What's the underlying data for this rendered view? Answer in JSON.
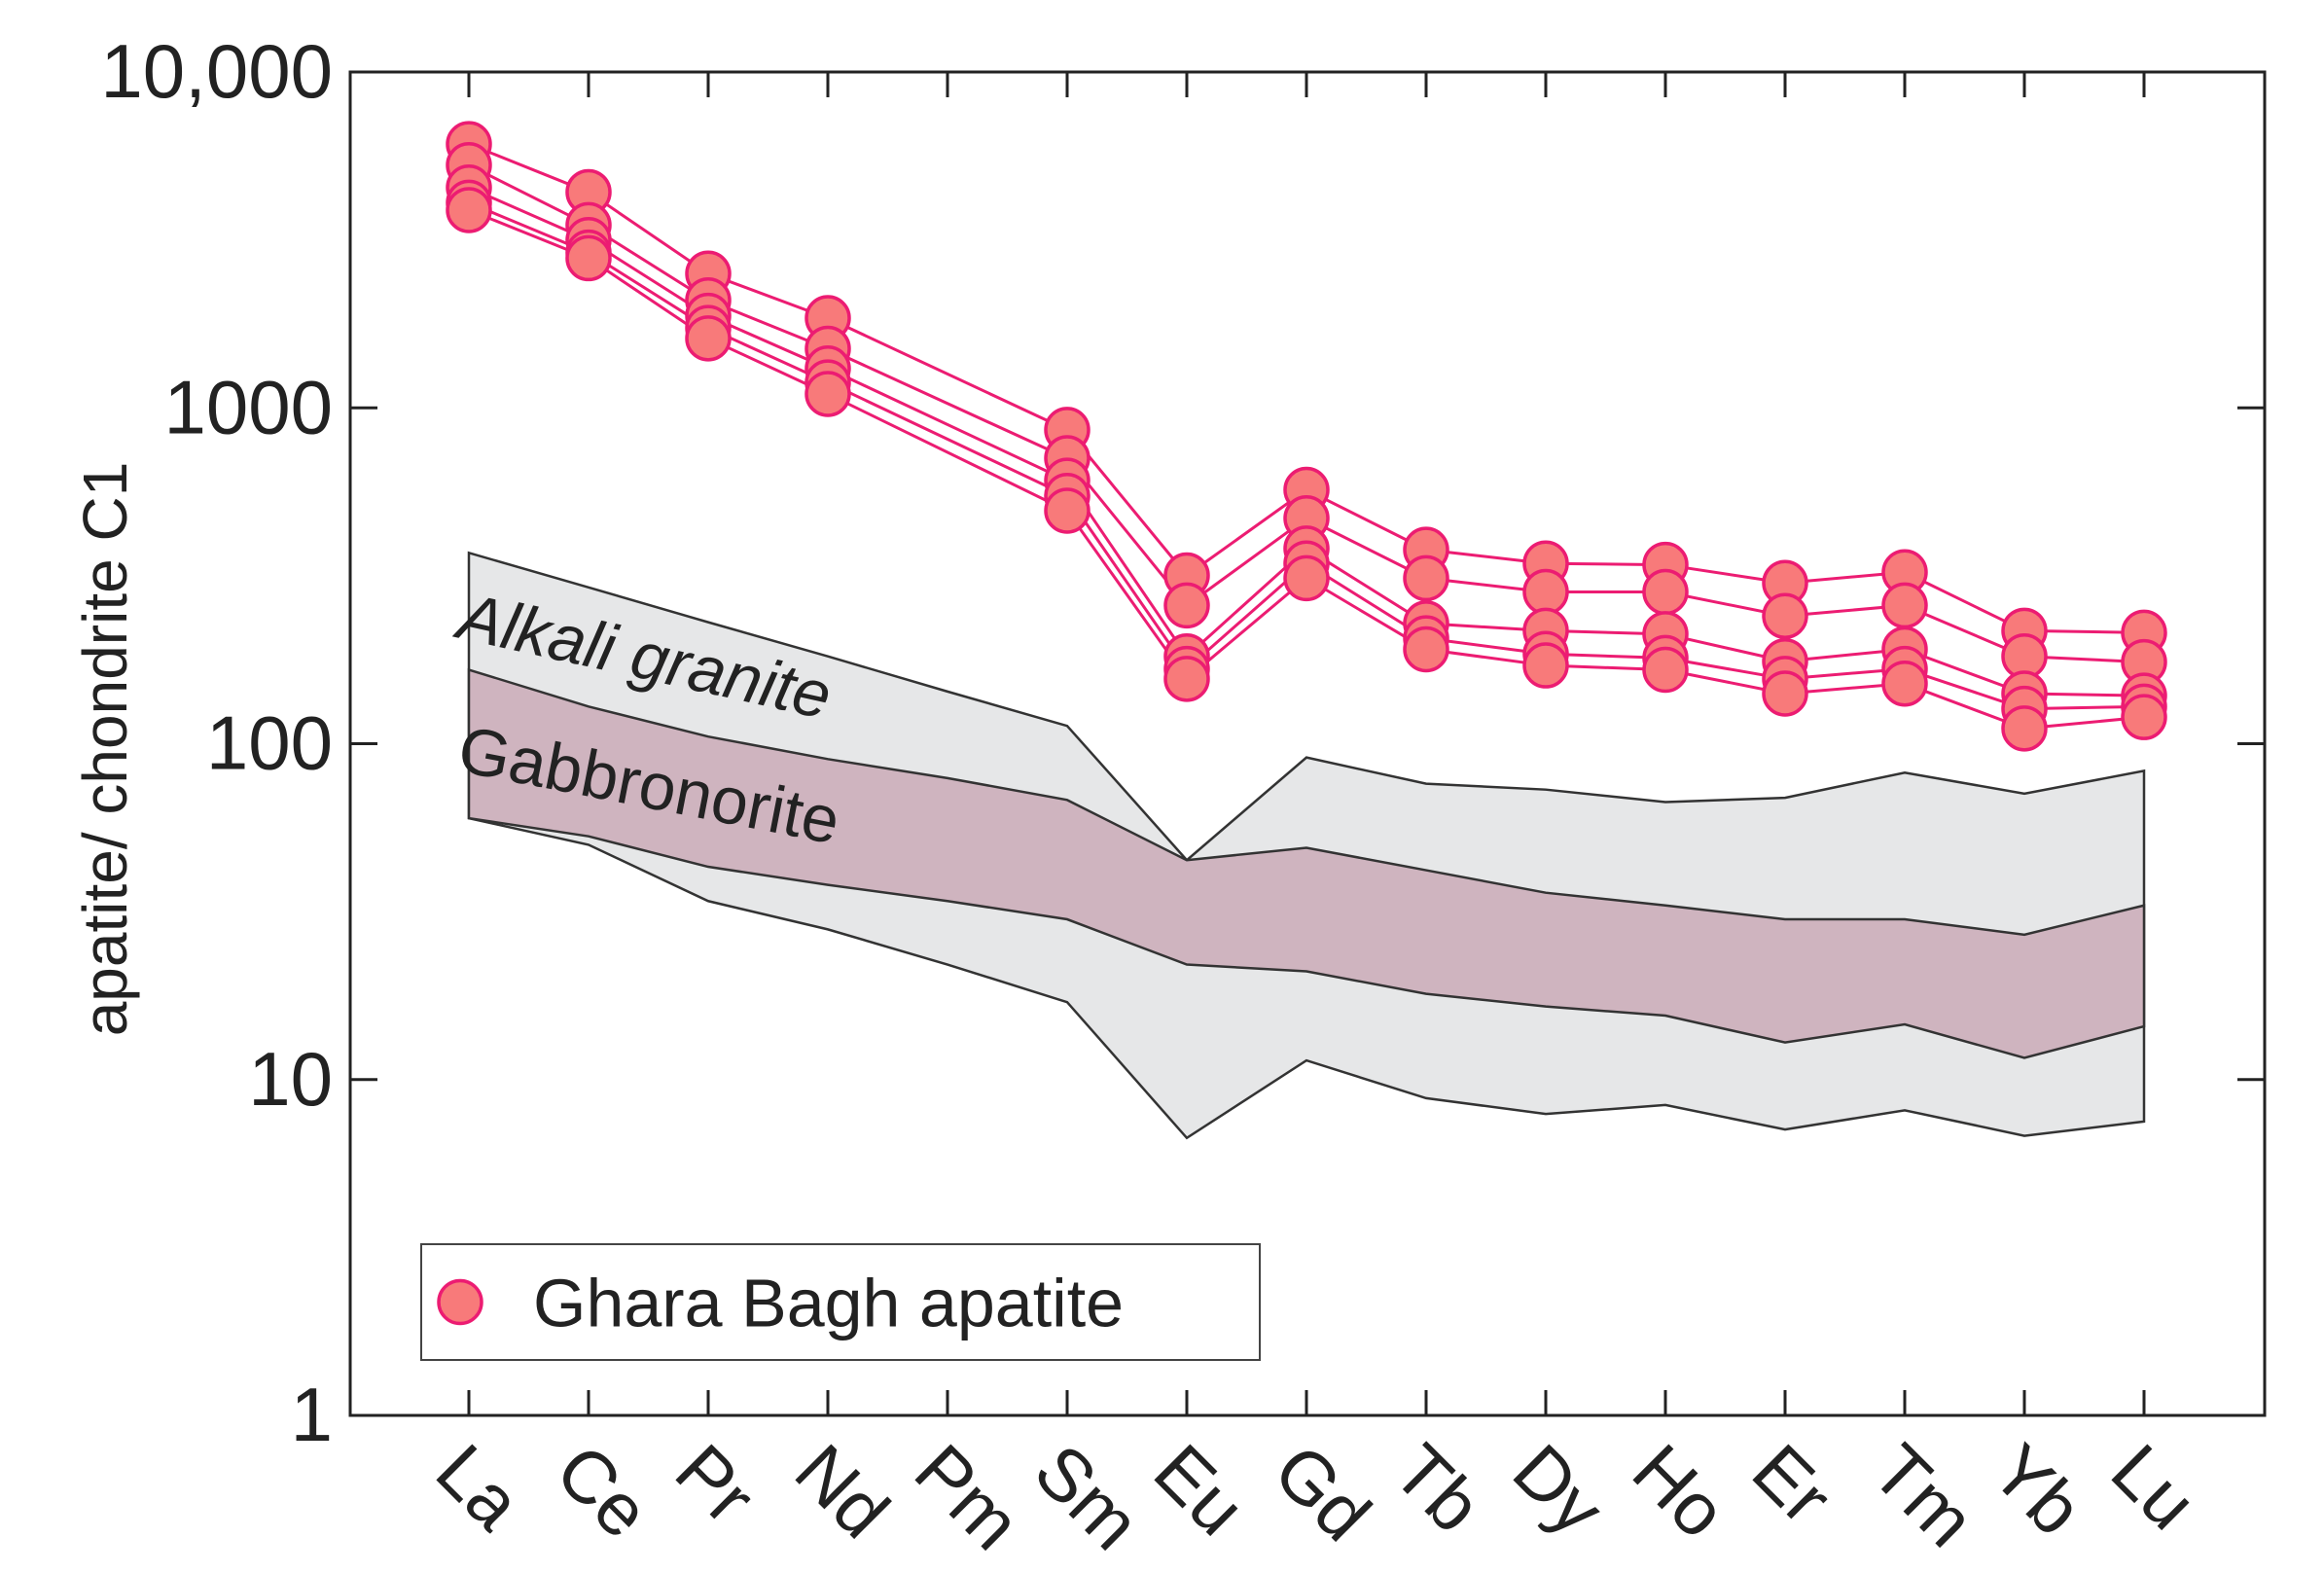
{
  "chart_data": {
    "type": "line",
    "y_label": "apatite/ chondrite C1",
    "log_y": true,
    "ylim": [
      1,
      10000
    ],
    "yticks": [
      1,
      10,
      100,
      1000,
      {
        "value": 10000,
        "label": "10,000"
      }
    ],
    "categories": [
      "La",
      "Ce",
      "Pr",
      "Nd",
      "Pm",
      "Sm",
      "Eu",
      "Gd",
      "Tb",
      "Dy",
      "Ho",
      "Er",
      "Tm",
      "Yb",
      "Lu"
    ],
    "legend": "bottom-left",
    "bands": [
      {
        "name": "Alkali granite",
        "color": "#e6e7e8",
        "upper": [
          370,
          292,
          230,
          182,
          143,
          113,
          45,
          91,
          76,
          73,
          67,
          69,
          82,
          71,
          83
        ],
        "lower": [
          60,
          50,
          34,
          28,
          22,
          17,
          6.7,
          11.4,
          8.8,
          7.9,
          8.4,
          7.1,
          8.1,
          6.8,
          7.5
        ]
      },
      {
        "name": "Gabbronorite",
        "color": "#cfb4bf",
        "upper": [
          166,
          129,
          105,
          90,
          79,
          68,
          45,
          49,
          42,
          36,
          33,
          30,
          30,
          27,
          33
        ],
        "lower": [
          60,
          53,
          43,
          38,
          34,
          30,
          22,
          21,
          18,
          16.5,
          15.5,
          12.9,
          14.6,
          11.6,
          14.4
        ]
      }
    ],
    "series": [
      {
        "name": "Ghara Bagh apatite",
        "color": "#ec1c72",
        "marker_color": "#f87a7a",
        "samples": [
          [
            6100,
            4390,
            2510,
            1850,
            null,
            860,
            317,
            570,
            378,
            344,
            341,
            301,
            324,
            217,
            214
          ],
          [
            5280,
            3500,
            2090,
            1500,
            null,
            708,
            258,
            469,
            311,
            283,
            283,
            240,
            258,
            182,
            175
          ],
          [
            4530,
            3160,
            1880,
            1310,
            null,
            607,
            182,
            381,
            228,
            217,
            212,
            176,
            191,
            141,
            139
          ],
          [
            4080,
            2900,
            1730,
            1190,
            null,
            547,
            167,
            344,
            206,
            185,
            180,
            156,
            167,
            127,
            129
          ],
          [
            3880,
            2790,
            1610,
            1100,
            null,
            494,
            156,
            311,
            191,
            171,
            166,
            141,
            151,
            111,
            120
          ]
        ]
      }
    ]
  }
}
